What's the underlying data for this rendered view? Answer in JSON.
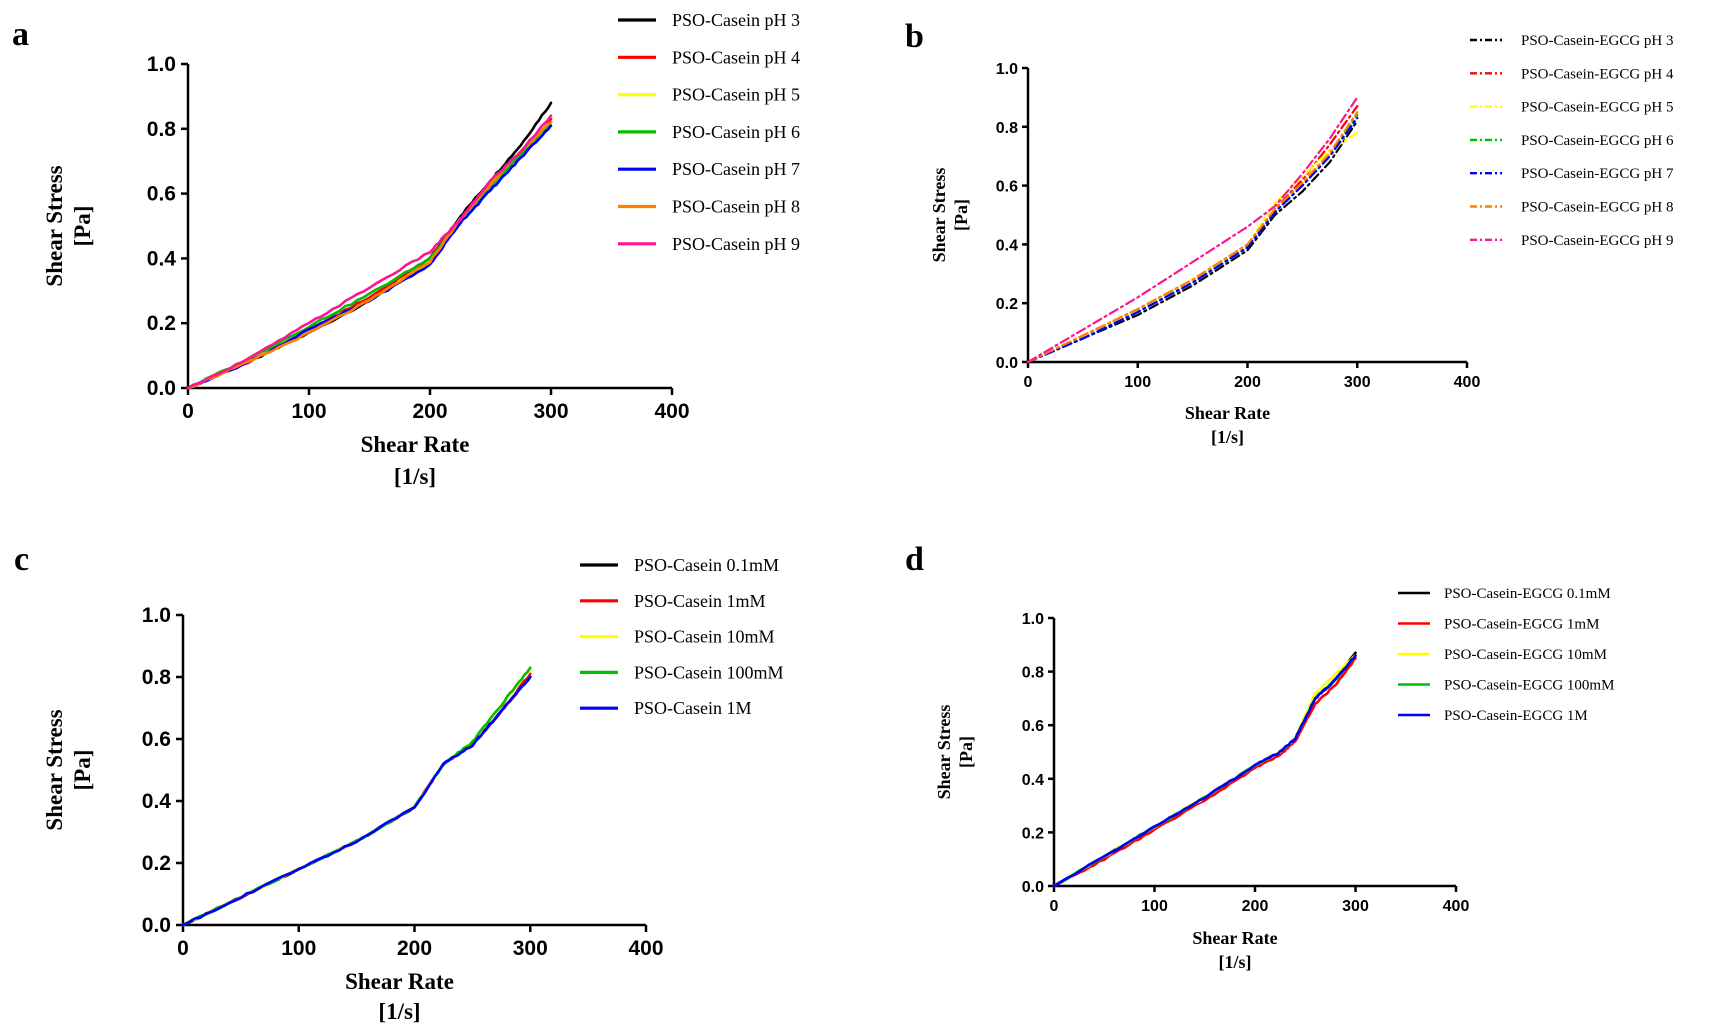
{
  "chart_data": [
    {
      "panel": "a",
      "type": "line",
      "xlabel": "Shear Rate",
      "xunit": "[1/s]",
      "ylabel": "Shear Stress",
      "yunit": "[Pa]",
      "xlim": [
        0,
        400
      ],
      "ylim": [
        0,
        1.0
      ],
      "xticks": [
        "0",
        "100",
        "200",
        "300",
        "400"
      ],
      "yticks": [
        "0.0",
        "0.2",
        "0.4",
        "0.6",
        "0.8",
        "1.0"
      ],
      "legend_position": "right",
      "line_style": "solid",
      "series": [
        {
          "name": "PSO-Casein pH 3",
          "color": "#000000",
          "x": [
            0,
            50,
            100,
            150,
            200,
            225,
            250,
            275,
            300
          ],
          "y": [
            0,
            0.08,
            0.17,
            0.27,
            0.4,
            0.53,
            0.64,
            0.75,
            0.88
          ]
        },
        {
          "name": "PSO-Casein pH 4",
          "color": "#ff0000",
          "x": [
            0,
            50,
            100,
            150,
            200,
            225,
            250,
            275,
            300
          ],
          "y": [
            0,
            0.08,
            0.18,
            0.28,
            0.4,
            0.52,
            0.63,
            0.73,
            0.83
          ]
        },
        {
          "name": "PSO-Casein pH 5",
          "color": "#ffff00",
          "x": [
            0,
            50,
            100,
            150,
            200,
            225,
            250,
            275,
            300
          ],
          "y": [
            0,
            0.08,
            0.18,
            0.27,
            0.39,
            0.52,
            0.63,
            0.72,
            0.84
          ]
        },
        {
          "name": "PSO-Casein pH 6",
          "color": "#00c000",
          "x": [
            0,
            50,
            100,
            150,
            200,
            225,
            250,
            275,
            300
          ],
          "y": [
            0,
            0.09,
            0.19,
            0.29,
            0.4,
            0.52,
            0.62,
            0.72,
            0.82
          ]
        },
        {
          "name": "PSO-Casein pH 7",
          "color": "#0000ff",
          "x": [
            0,
            50,
            100,
            150,
            200,
            225,
            250,
            275,
            300
          ],
          "y": [
            0,
            0.08,
            0.18,
            0.27,
            0.38,
            0.51,
            0.61,
            0.71,
            0.81
          ]
        },
        {
          "name": "PSO-Casein pH 8",
          "color": "#ff8000",
          "x": [
            0,
            50,
            100,
            150,
            200,
            225,
            250,
            275,
            300
          ],
          "y": [
            0,
            0.08,
            0.17,
            0.27,
            0.39,
            0.52,
            0.63,
            0.73,
            0.82
          ]
        },
        {
          "name": "PSO-Casein pH 9",
          "color": "#ff1493",
          "x": [
            0,
            50,
            100,
            150,
            200,
            225,
            250,
            275,
            300
          ],
          "y": [
            0,
            0.09,
            0.2,
            0.31,
            0.42,
            0.52,
            0.64,
            0.73,
            0.84
          ]
        }
      ]
    },
    {
      "panel": "b",
      "type": "line",
      "xlabel": "Shear Rate",
      "xunit": "[1/s]",
      "ylabel": "Shear Stress",
      "yunit": "[Pa]",
      "xlim": [
        0,
        400
      ],
      "ylim": [
        0,
        1.0
      ],
      "xticks": [
        "0",
        "100",
        "200",
        "300",
        "400"
      ],
      "yticks": [
        "0.0",
        "0.2",
        "0.4",
        "0.6",
        "0.8",
        "1.0"
      ],
      "legend_position": "right",
      "line_style": "dashdot",
      "series": [
        {
          "name": "PSO-Casein-EGCG pH 3",
          "color": "#000000",
          "x": [
            0,
            50,
            100,
            150,
            200,
            225,
            250,
            275,
            300
          ],
          "y": [
            0,
            0.08,
            0.16,
            0.26,
            0.38,
            0.5,
            0.58,
            0.68,
            0.82
          ]
        },
        {
          "name": "PSO-Casein-EGCG pH 4",
          "color": "#ff0000",
          "x": [
            0,
            50,
            100,
            150,
            200,
            225,
            250,
            275,
            300
          ],
          "y": [
            0,
            0.09,
            0.18,
            0.28,
            0.4,
            0.52,
            0.62,
            0.74,
            0.87
          ]
        },
        {
          "name": "PSO-Casein-EGCG pH 5",
          "color": "#ffff00",
          "x": [
            0,
            50,
            100,
            150,
            200,
            225,
            250,
            275,
            300
          ],
          "y": [
            0,
            0.09,
            0.18,
            0.28,
            0.4,
            0.54,
            0.63,
            0.72,
            0.78
          ]
        },
        {
          "name": "PSO-Casein-EGCG pH 6",
          "color": "#00c000",
          "x": [
            0,
            50,
            100,
            150,
            200,
            225,
            250,
            275,
            300
          ],
          "y": [
            0,
            0.08,
            0.17,
            0.27,
            0.39,
            0.51,
            0.6,
            0.7,
            0.84
          ]
        },
        {
          "name": "PSO-Casein-EGCG pH 7",
          "color": "#0000ff",
          "x": [
            0,
            50,
            100,
            150,
            200,
            225,
            250,
            275,
            300
          ],
          "y": [
            0,
            0.08,
            0.17,
            0.27,
            0.39,
            0.51,
            0.6,
            0.7,
            0.83
          ]
        },
        {
          "name": "PSO-Casein-EGCG pH 8",
          "color": "#ff8000",
          "x": [
            0,
            50,
            100,
            150,
            200,
            225,
            250,
            275,
            300
          ],
          "y": [
            0,
            0.09,
            0.18,
            0.28,
            0.4,
            0.52,
            0.61,
            0.71,
            0.85
          ]
        },
        {
          "name": "PSO-Casein-EGCG pH 9",
          "color": "#ff1493",
          "x": [
            0,
            50,
            100,
            150,
            200,
            225,
            250,
            275,
            300
          ],
          "y": [
            0,
            0.11,
            0.22,
            0.34,
            0.46,
            0.53,
            0.64,
            0.76,
            0.9
          ]
        }
      ]
    },
    {
      "panel": "c",
      "type": "line",
      "xlabel": "Shear Rate",
      "xunit": "[1/s]",
      "ylabel": "Shear Stress",
      "yunit": "[Pa]",
      "xlim": [
        0,
        400
      ],
      "ylim": [
        0,
        1.0
      ],
      "xticks": [
        "0",
        "100",
        "200",
        "300",
        "400"
      ],
      "yticks": [
        "0.0",
        "0.2",
        "0.4",
        "0.6",
        "0.8",
        "1.0"
      ],
      "legend_position": "right",
      "line_style": "solid",
      "series": [
        {
          "name": "PSO-Casein 0.1mM",
          "color": "#000000",
          "x": [
            0,
            50,
            100,
            150,
            200,
            225,
            250,
            275,
            300
          ],
          "y": [
            0,
            0.09,
            0.18,
            0.27,
            0.38,
            0.52,
            0.58,
            0.69,
            0.8
          ]
        },
        {
          "name": "PSO-Casein 1mM",
          "color": "#ff0000",
          "x": [
            0,
            50,
            100,
            150,
            200,
            225,
            250,
            275,
            300
          ],
          "y": [
            0,
            0.09,
            0.18,
            0.27,
            0.38,
            0.52,
            0.58,
            0.69,
            0.81
          ]
        },
        {
          "name": "PSO-Casein 10mM",
          "color": "#ffff00",
          "x": [
            0,
            50,
            100,
            150,
            200,
            225,
            250,
            275,
            300
          ],
          "y": [
            0,
            0.09,
            0.18,
            0.27,
            0.38,
            0.52,
            0.59,
            0.71,
            0.83
          ]
        },
        {
          "name": "PSO-Casein 100mM",
          "color": "#00c000",
          "x": [
            0,
            50,
            100,
            150,
            200,
            225,
            250,
            275,
            300
          ],
          "y": [
            0,
            0.09,
            0.18,
            0.27,
            0.38,
            0.52,
            0.59,
            0.71,
            0.83
          ]
        },
        {
          "name": "PSO-Casein 1M",
          "color": "#0000ff",
          "x": [
            0,
            50,
            100,
            150,
            200,
            225,
            250,
            275,
            300
          ],
          "y": [
            0,
            0.09,
            0.18,
            0.27,
            0.38,
            0.52,
            0.58,
            0.69,
            0.8
          ]
        }
      ]
    },
    {
      "panel": "d",
      "type": "line",
      "xlabel": "Shear Rate",
      "xunit": "[1/s]",
      "ylabel": "Shear Stress",
      "yunit": "[Pa]",
      "xlim": [
        0,
        400
      ],
      "ylim": [
        0,
        1.0
      ],
      "xticks": [
        "0",
        "100",
        "200",
        "300",
        "400"
      ],
      "yticks": [
        "0.0",
        "0.2",
        "0.4",
        "0.6",
        "0.8",
        "1.0"
      ],
      "legend_position": "right",
      "line_style": "solid",
      "series": [
        {
          "name": "PSO-Casein-EGCG 0.1mM",
          "color": "#000000",
          "x": [
            0,
            50,
            100,
            150,
            200,
            225,
            240,
            260,
            280,
            300
          ],
          "y": [
            0,
            0.11,
            0.22,
            0.33,
            0.45,
            0.5,
            0.55,
            0.7,
            0.77,
            0.87
          ]
        },
        {
          "name": "PSO-Casein-EGCG 1mM",
          "color": "#ff0000",
          "x": [
            0,
            50,
            100,
            150,
            200,
            225,
            240,
            260,
            280,
            300
          ],
          "y": [
            0,
            0.1,
            0.21,
            0.32,
            0.44,
            0.49,
            0.54,
            0.68,
            0.75,
            0.85
          ]
        },
        {
          "name": "PSO-Casein-EGCG 10mM",
          "color": "#ffff00",
          "x": [
            0,
            50,
            100,
            150,
            200,
            225,
            240,
            260,
            280,
            300
          ],
          "y": [
            0,
            0.11,
            0.22,
            0.33,
            0.45,
            0.5,
            0.55,
            0.72,
            0.79,
            0.86
          ]
        },
        {
          "name": "PSO-Casein-EGCG 100mM",
          "color": "#00c000",
          "x": [
            0,
            50,
            100,
            150,
            200,
            225,
            240,
            260,
            280,
            300
          ],
          "y": [
            0,
            0.11,
            0.22,
            0.33,
            0.45,
            0.5,
            0.55,
            0.7,
            0.77,
            0.86
          ]
        },
        {
          "name": "PSO-Casein-EGCG 1M",
          "color": "#0000ff",
          "x": [
            0,
            50,
            100,
            150,
            200,
            225,
            240,
            260,
            280,
            300
          ],
          "y": [
            0,
            0.11,
            0.22,
            0.33,
            0.45,
            0.5,
            0.55,
            0.7,
            0.77,
            0.86
          ]
        }
      ]
    }
  ]
}
